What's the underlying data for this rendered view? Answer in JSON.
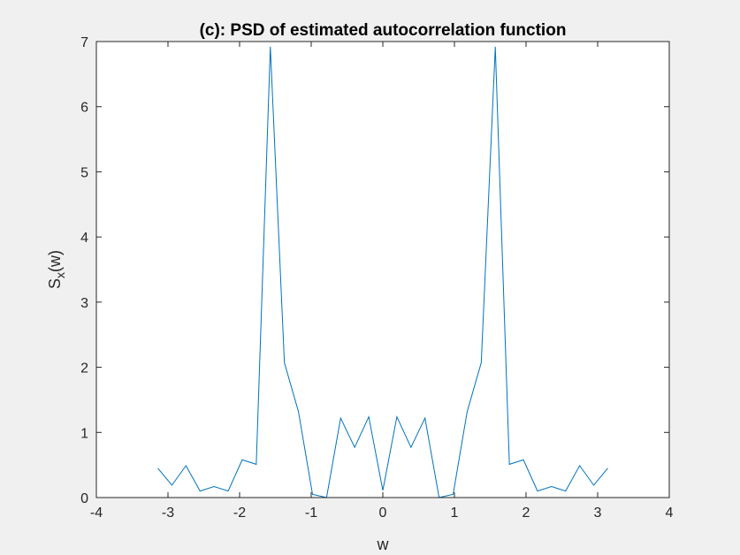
{
  "chart_data": {
    "type": "line",
    "title": "(c): PSD of estimated autocorrelation function",
    "xlabel": "w",
    "ylabel": {
      "main": "S",
      "sub": "x",
      "suffix": "(w)"
    },
    "xlim": [
      -4,
      4
    ],
    "ylim": [
      0,
      7
    ],
    "xticks": [
      -4,
      -3,
      -2,
      -1,
      0,
      1,
      2,
      3,
      4
    ],
    "yticks": [
      0,
      1,
      2,
      3,
      4,
      5,
      6,
      7
    ],
    "grid": false,
    "series": [
      {
        "color": "#0072bd",
        "x": [
          -3.1416,
          -2.9452,
          -2.7489,
          -2.5525,
          -2.3562,
          -2.1598,
          -1.9635,
          -1.7671,
          -1.5708,
          -1.3744,
          -1.1781,
          -0.9817,
          -0.7854,
          -0.589,
          -0.3927,
          -0.1963,
          0,
          0.1963,
          0.3927,
          0.589,
          0.7854,
          0.9817,
          1.1781,
          1.3744,
          1.5708,
          1.7671,
          1.9635,
          2.1598,
          2.3562,
          2.5525,
          2.7489,
          2.9452,
          3.1416
        ],
        "y": [
          0.45,
          0.19,
          0.49,
          0.1,
          0.17,
          0.1,
          0.58,
          0.51,
          6.92,
          2.07,
          1.32,
          0.05,
          0.0,
          1.22,
          0.77,
          1.24,
          0.11,
          1.24,
          0.77,
          1.22,
          0.0,
          0.05,
          1.32,
          2.07,
          6.92,
          0.51,
          0.58,
          0.1,
          0.17,
          0.1,
          0.49,
          0.19,
          0.45
        ]
      }
    ]
  }
}
